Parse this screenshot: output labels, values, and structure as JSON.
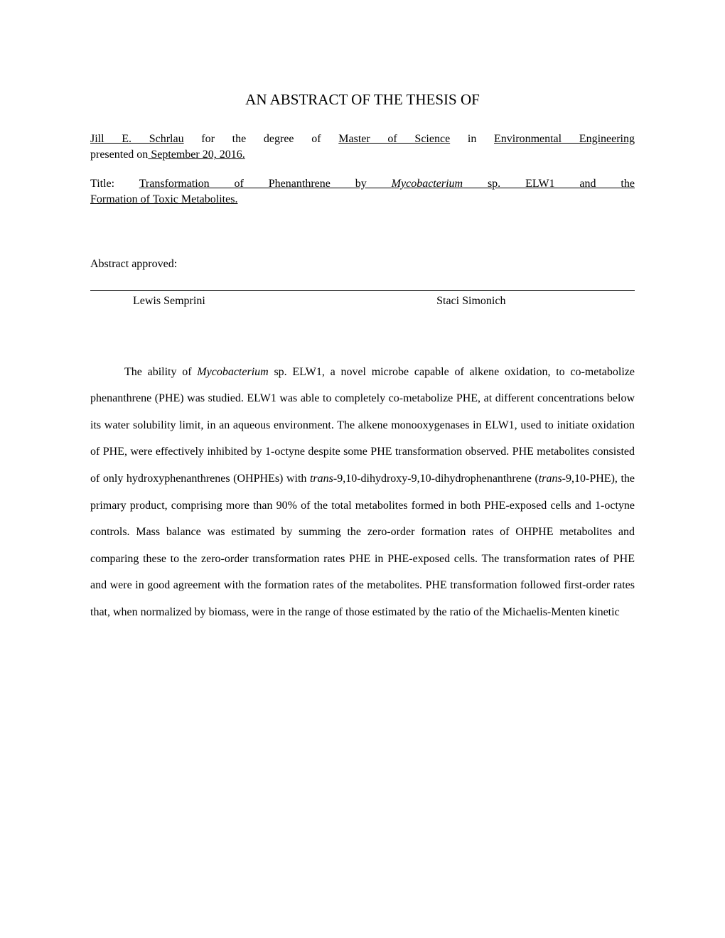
{
  "page": {
    "title": "AN ABSTRACT OF THE THESIS OF",
    "background_color": "#ffffff",
    "text_color": "#000000",
    "font_family": "Times New Roman",
    "title_fontsize": 21,
    "body_fontsize": 16,
    "line_height_body": 2.35
  },
  "author": {
    "name": "Jill E. Schrlau",
    "degree_prefix": " for the degree of ",
    "degree": "Master of Science",
    "subject_prefix": " in ",
    "subject": "Environmental Engineering",
    "presented_prefix": "presented on",
    "date": " September 20, 2016."
  },
  "thesis_title": {
    "label": "Title:",
    "spacer": "   ",
    "part1_plain": "Transformation of Phenanthrene by ",
    "part1_italic": "Mycobacterium",
    "part1_plain_end": " sp. ELW1 and the",
    "part2": "Formation of Toxic Metabolites."
  },
  "approval": {
    "label": "Abstract approved:",
    "signer1": "Lewis Semprini",
    "signer2": "Staci Simonich"
  },
  "abstract": {
    "sent1_a": "The ability of ",
    "sent1_italic": "Mycobacterium",
    "sent1_b": " sp. ELW1, a novel microbe capable of alkene oxidation, to co-metabolize phenanthrene (PHE) was studied. ELW1 was able to completely co-metabolize PHE, at different concentrations below its water solubility limit, in an aqueous environment. The alkene monooxygenases in ELW1, used to initiate oxidation of PHE, were effectively inhibited by 1-octyne despite some PHE transformation observed. PHE metabolites consisted of only hydroxyphenanthrenes (OHPHEs) with ",
    "sent2_italic1": "trans-",
    "sent2_a": "9,10-dihydroxy-9,10-dihydrophenanthrene (",
    "sent2_italic2": "trans-",
    "sent2_b": "9,10-PHE), the primary product, comprising more than 90% of the total metabolites formed in both PHE-exposed cells and 1-octyne controls. Mass balance was estimated by summing the zero-order formation rates of OHPHE metabolites and comparing these to the zero-order transformation rates PHE in PHE-exposed cells. The transformation rates of PHE and were in good agreement with the formation rates of the metabolites. PHE transformation followed first-order rates that, when normalized by biomass, were in the range of those estimated by the ratio of the Michaelis-Menten kinetic"
  }
}
